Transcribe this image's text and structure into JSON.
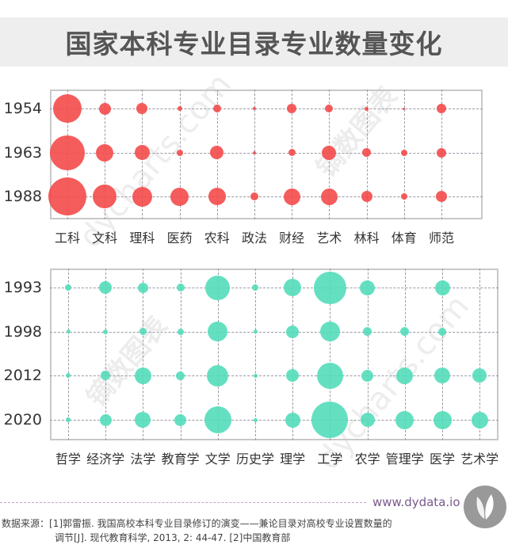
{
  "title": "国家本科专业目录专业数量变化",
  "chart_data": [
    {
      "type": "bubble",
      "title": "国家本科专业目录专业数量变化（1954-1988）",
      "color": "#f44a4a",
      "categories": [
        "工科",
        "文科",
        "理科",
        "医药",
        "农科",
        "政法",
        "财经",
        "艺术",
        "林科",
        "体育",
        "师范"
      ],
      "rows": [
        "1954",
        "1963",
        "1988"
      ],
      "series": [
        {
          "name": "1954",
          "sizes": [
            36,
            15,
            14,
            6,
            10,
            4,
            12,
            10,
            5,
            3,
            12
          ]
        },
        {
          "name": "1963",
          "sizes": [
            44,
            22,
            19,
            8,
            17,
            4,
            9,
            18,
            11,
            8,
            12
          ]
        },
        {
          "name": "1988",
          "sizes": [
            48,
            30,
            25,
            23,
            22,
            10,
            21,
            21,
            14,
            8,
            14
          ]
        }
      ],
      "size_unit": "relative bubble diameter (px, estimated)",
      "grid": true,
      "legend": "none"
    },
    {
      "type": "bubble",
      "title": "国家本科专业目录专业数量变化（1993-2020）",
      "color": "#4fdcb8",
      "categories": [
        "哲学",
        "经济学",
        "法学",
        "教育学",
        "文学",
        "历史学",
        "理学",
        "工学",
        "农学",
        "管理学",
        "医学",
        "艺术学"
      ],
      "rows": [
        "1993",
        "1998",
        "2012",
        "2020"
      ],
      "series": [
        {
          "name": "1993",
          "sizes": [
            8,
            16,
            13,
            10,
            31,
            8,
            22,
            41,
            19,
            0,
            19,
            0
          ]
        },
        {
          "name": "1998",
          "sizes": [
            5,
            6,
            9,
            8,
            25,
            5,
            16,
            25,
            11,
            11,
            10,
            0
          ]
        },
        {
          "name": "2012",
          "sizes": [
            6,
            12,
            21,
            11,
            27,
            5,
            16,
            33,
            15,
            21,
            20,
            18
          ]
        },
        {
          "name": "2020",
          "sizes": [
            6,
            15,
            20,
            15,
            34,
            5,
            19,
            46,
            18,
            23,
            23,
            21
          ]
        }
      ],
      "size_unit": "relative bubble diameter (px, estimated)",
      "grid": true,
      "legend": "none"
    }
  ],
  "footer": {
    "site": "www.dydata.io",
    "source_label": "数据来源：",
    "source_line1": "[1]郭雷振. 我国高校本科专业目录修订的演变——兼论目录对高校专业设置数量的",
    "source_line2": "调节[J]. 现代教育科学, 2013, 2: 44-47. [2]中国教育部"
  },
  "watermarks": [
    "dycharts.com",
    "镝数图表"
  ]
}
